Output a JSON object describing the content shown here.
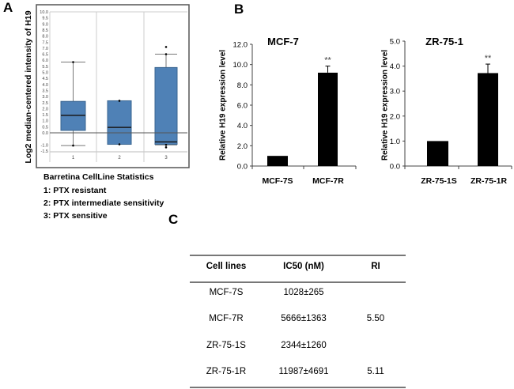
{
  "panels": {
    "a": "A",
    "b": "B",
    "c": "C"
  },
  "chart_data": [
    {
      "type": "box",
      "ylabel": "Log2 median-centered intensity of H19",
      "yticks": [
        "10.0",
        "9.5",
        "9.0",
        "8.5",
        "8.0",
        "7.5",
        "7.0",
        "6.5",
        "6.0",
        "5.5",
        "5.0",
        "4.5",
        "4.0",
        "3.5",
        "3.0",
        "2.5",
        "2.0",
        "1.5",
        "1.0",
        "0.5",
        "0.0",
        "-1.0",
        "-1.5"
      ],
      "ytick_values": [
        10,
        9.5,
        9,
        8.5,
        8,
        7.5,
        7,
        6.5,
        6,
        5.5,
        5,
        4.5,
        4,
        3.5,
        3,
        2.5,
        2,
        1.5,
        1,
        0.5,
        0,
        -1,
        -1.5
      ],
      "ylim": [
        -1.5,
        10
      ],
      "categories": [
        "1",
        "2",
        "3"
      ],
      "boxes": [
        {
          "whisker_low": -1.05,
          "q1": 0.2,
          "median": 1.45,
          "q3": 2.6,
          "whisker_high": 5.85,
          "outliers": []
        },
        {
          "whisker_low": -0.95,
          "q1": -0.95,
          "median": 0.45,
          "q3": 2.65,
          "whisker_high": 2.65,
          "outliers": []
        },
        {
          "whisker_low": -1.0,
          "q1": -0.95,
          "median": -0.75,
          "q3": 5.4,
          "whisker_high": 6.5,
          "outliers": [
            7.1,
            -1.2
          ]
        }
      ],
      "caption": [
        "Barretina CellLine Statistics",
        "1: PTX resistant",
        "2: PTX intermediate sensitivity",
        "3: PTX sensitive"
      ],
      "box_color": "#4f81b6"
    },
    {
      "type": "bar",
      "title": "MCF-7",
      "ylabel": "Relative H19 expression level",
      "categories": [
        "MCF-7S",
        "MCF-7R"
      ],
      "values": [
        1.0,
        9.2
      ],
      "errors": [
        0,
        0.65
      ],
      "annotations": [
        "",
        "**"
      ],
      "ylim": [
        0,
        12
      ],
      "yticks": [
        "0.0",
        "2.0",
        "4.0",
        "6.0",
        "8.0",
        "10.0",
        "12.0"
      ],
      "ytick_values": [
        0,
        2,
        4,
        6,
        8,
        10,
        12
      ]
    },
    {
      "type": "bar",
      "title": "ZR-75-1",
      "ylabel": "Relative H19 expression level",
      "categories": [
        "ZR-75-1S",
        "ZR-75-1R"
      ],
      "values": [
        1.0,
        3.72
      ],
      "errors": [
        0,
        0.36
      ],
      "annotations": [
        "",
        "**"
      ],
      "ylim": [
        0,
        5
      ],
      "yticks": [
        "0.0",
        "1.0",
        "2.0",
        "3.0",
        "4.0",
        "5.0"
      ],
      "ytick_values": [
        0,
        1,
        2,
        3,
        4,
        5
      ]
    },
    {
      "type": "table",
      "columns": [
        "Cell lines",
        "IC50 (nM)",
        "RI"
      ],
      "rows": [
        [
          "MCF-7S",
          "1028±265",
          ""
        ],
        [
          "MCF-7R",
          "5666±1363",
          "5.50"
        ],
        [
          "ZR-75-1S",
          "2344±1260",
          ""
        ],
        [
          "ZR-75-1R",
          "11987±4691",
          "5.11"
        ]
      ]
    }
  ]
}
